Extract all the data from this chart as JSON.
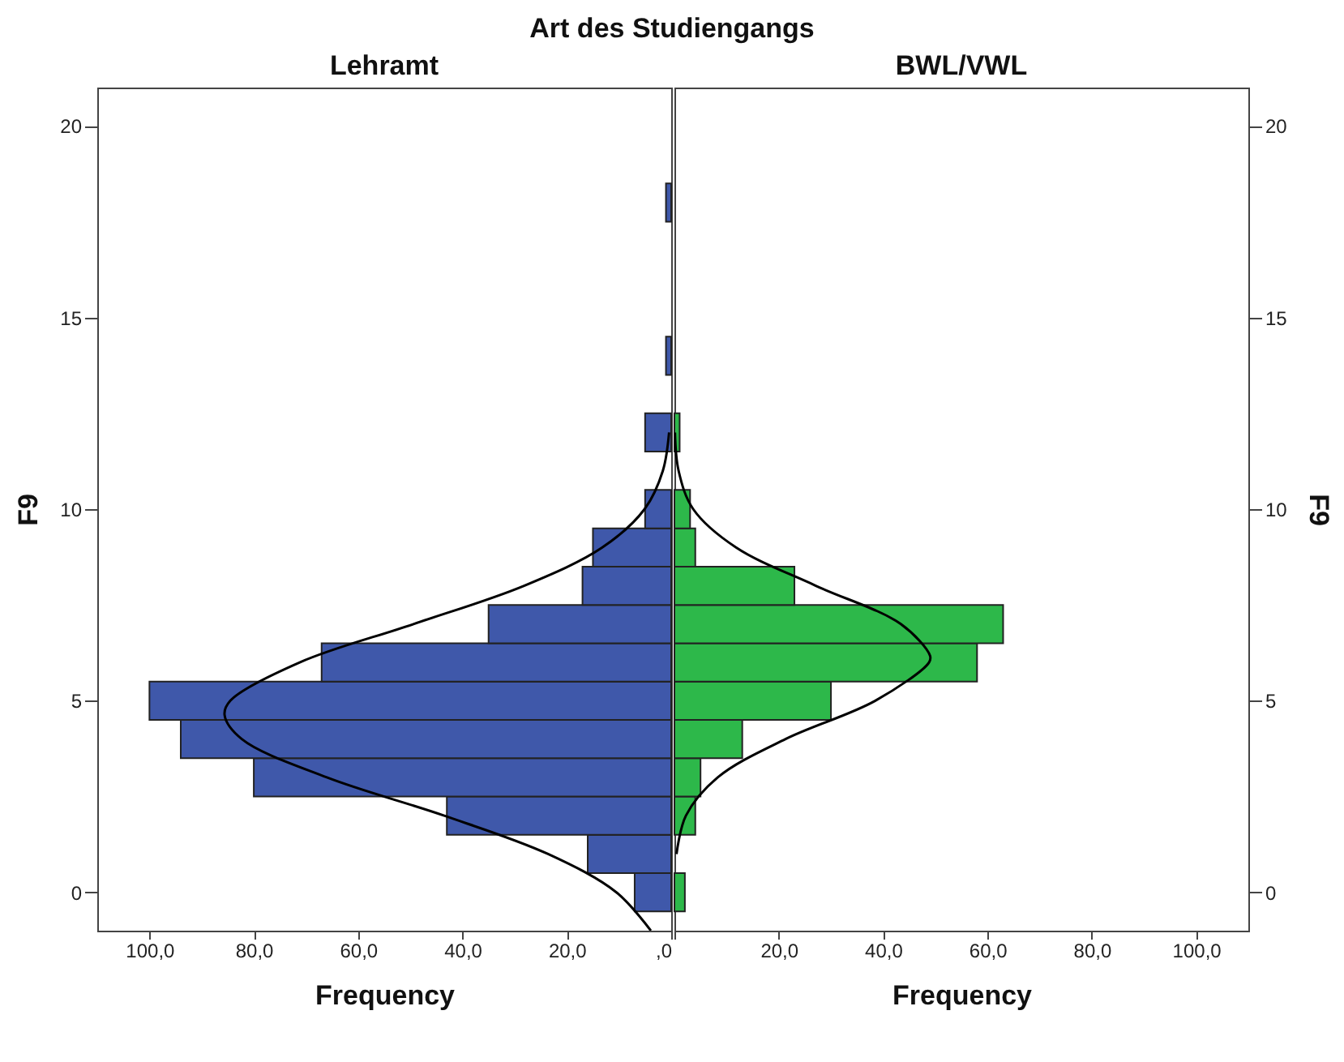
{
  "chart_data": [
    {
      "type": "histogram",
      "title": "Lehramt",
      "annotations": [
        "Art des Studiengangs"
      ],
      "orientation": "horizontal",
      "xlabel": "Frequency",
      "ylabel": "F9",
      "bins": [
        -0.5,
        0.5,
        1.5,
        2.5,
        3.5,
        4.5,
        5.5,
        6.5,
        7.5,
        8.5,
        9.5,
        10.5,
        11.5,
        12.5,
        13.5,
        14.5,
        15.5,
        16.5,
        17.5,
        18.5
      ],
      "values": [
        7,
        16,
        43,
        80,
        94,
        100,
        67,
        35,
        17,
        15,
        5,
        0,
        5,
        0,
        1,
        0,
        0,
        0,
        1
      ],
      "color": "#3f58aa",
      "series": [
        {
          "type": "line",
          "color": "#000000",
          "x": [
            -1,
            0,
            1,
            2,
            3,
            4,
            4.63,
            5,
            6,
            7,
            8,
            9,
            10,
            11,
            12
          ],
          "values": [
            3.9,
            10.5,
            23.6,
            43.5,
            66.0,
            82.3,
            85.6,
            84.5,
            71.2,
            49.4,
            28.2,
            13.2,
            5.1,
            1.6,
            0.4
          ]
        }
      ],
      "xlim": [
        110,
        0
      ],
      "xticks": [
        {
          "value": 100,
          "label": "100,0"
        },
        {
          "value": 80,
          "label": "80,0"
        },
        {
          "value": 60,
          "label": "60,0"
        },
        {
          "value": 40,
          "label": "40,0"
        },
        {
          "value": 20,
          "label": "20,0"
        },
        {
          "value": 0,
          "label": ",0"
        }
      ],
      "ylim": [
        -1,
        21
      ],
      "yticks": [
        0,
        5,
        10,
        15,
        20
      ],
      "grid": false
    },
    {
      "type": "histogram",
      "title": "BWL/VWL",
      "orientation": "horizontal",
      "xlabel": "Frequency",
      "ylabel": "F9",
      "bins": [
        -0.5,
        0.5,
        1.5,
        2.5,
        3.5,
        4.5,
        5.5,
        6.5,
        7.5,
        8.5,
        9.5,
        10.5,
        11.5,
        12.5
      ],
      "values": [
        2,
        0,
        4,
        5,
        13,
        30,
        58,
        63,
        23,
        4,
        3,
        0,
        1
      ],
      "color": "#2db84a",
      "series": [
        {
          "type": "line",
          "color": "#000000",
          "x": [
            1,
            2,
            3,
            4,
            5,
            6,
            6.17,
            7,
            8,
            9,
            10,
            11,
            12
          ],
          "values": [
            0.4,
            2.2,
            8.3,
            21.3,
            38.5,
            48.8,
            49,
            43.4,
            27.1,
            11.8,
            3.6,
            0.8,
            0.1
          ]
        }
      ],
      "xlim": [
        0,
        110
      ],
      "xticks": [
        {
          "value": 0,
          "label": null
        },
        {
          "value": 20,
          "label": "20,0"
        },
        {
          "value": 40,
          "label": "40,0"
        },
        {
          "value": 60,
          "label": "60,0"
        },
        {
          "value": 80,
          "label": "80,0"
        },
        {
          "value": 100,
          "label": "100,0"
        }
      ],
      "ylim": [
        -1,
        21
      ],
      "yticks": [
        0,
        5,
        10,
        15,
        20
      ],
      "grid": false
    }
  ]
}
